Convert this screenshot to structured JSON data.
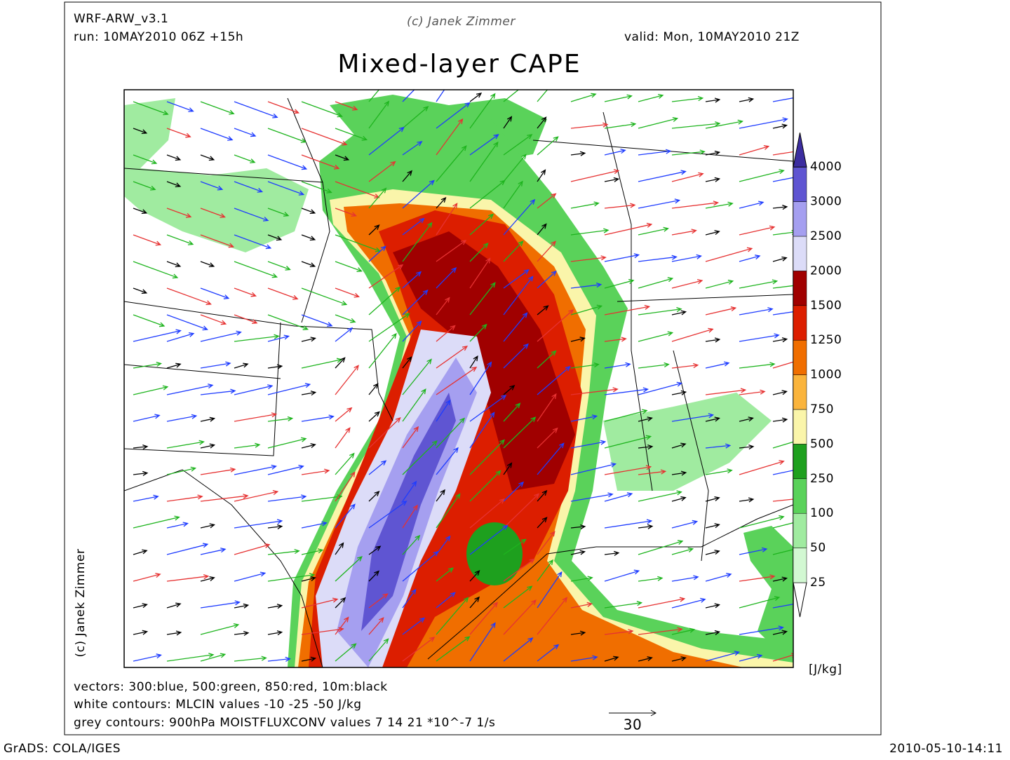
{
  "header": {
    "model": "WRF-ARW_v3.1",
    "run": "run: 10MAY2010 06Z +15h",
    "credit": "(c) Janek Zimmer",
    "valid": "valid: Mon, 10MAY2010 21Z",
    "title": "Mixed-layer CAPE",
    "side_credit": "(c) Janek Zimmer"
  },
  "colorbar": {
    "levels": [
      25,
      50,
      100,
      250,
      500,
      750,
      1000,
      1250,
      1500,
      2000,
      2500,
      3000,
      4000
    ],
    "colors": [
      "#ffffff",
      "#d2f8d2",
      "#a0eba0",
      "#5ad25a",
      "#1ea01e",
      "#faf5aa",
      "#fab43c",
      "#f06e00",
      "#dc1e00",
      "#a00000",
      "#dcdcf8",
      "#a59ff0",
      "#5f55d2",
      "#3c2da0"
    ],
    "unit": "[J/kg]"
  },
  "footer": {
    "lines": [
      "vectors: 300:blue, 500:green, 850:red, 10m:black",
      "white contours: MLCIN values -10 -25 -50 J/kg",
      "grey contours: 900hPa MOISTFLUXCONV values 7 14 21 *10^-7 1/s"
    ],
    "scale_vector": "30",
    "software": "GrADS: COLA/IGES",
    "timestamp": "2010-05-10-14:11"
  }
}
